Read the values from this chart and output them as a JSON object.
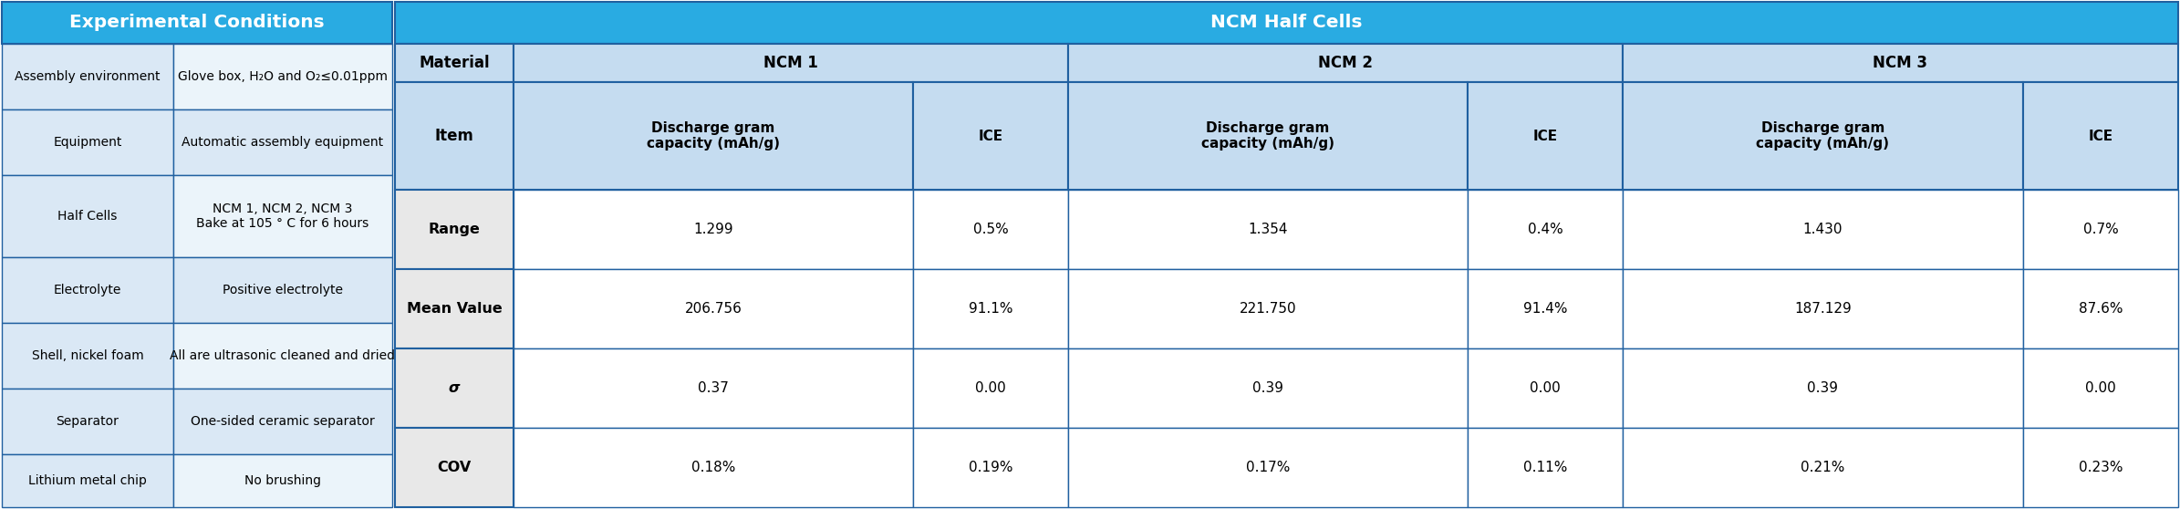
{
  "left_table": {
    "title": "Experimental Conditions",
    "title_bg": "#29ABE2",
    "title_color": "#FFFFFF",
    "rows": [
      [
        "Assembly environment",
        "Glove box, H₂O and O₂≤0.01ppm"
      ],
      [
        "Equipment",
        "Automatic assembly equipment"
      ],
      [
        "Half Cells",
        "NCM 1, NCM 2, NCM 3\nBake at 105 ° C for 6 hours"
      ],
      [
        "Electrolyte",
        "Positive electrolyte"
      ],
      [
        "Shell, nickel foam",
        "All are ultrasonic cleaned and dried"
      ],
      [
        "Separator",
        "One-sided ceramic separator"
      ],
      [
        "Lithium metal chip",
        "No brushing"
      ]
    ],
    "row_colors_col1": [
      "#DAE8F5",
      "#DAE8F5",
      "#DAE8F5",
      "#DAE8F5",
      "#DAE8F5",
      "#DAE8F5",
      "#DAE8F5"
    ],
    "row_colors_col2": [
      "#EBF4FA",
      "#DAE8F5",
      "#C5DCF0",
      "#EBF4FA",
      "#DAE8F5",
      "#EBF4FA",
      "#DAE8F5"
    ]
  },
  "right_table": {
    "main_title": "NCM Half Cells",
    "main_title_bg": "#29ABE2",
    "main_title_color": "#FFFFFF",
    "header_bg": "#C5DCF0",
    "col_groups": [
      "NCM 1",
      "NCM 2",
      "NCM 3"
    ],
    "sub_col_dgc": "Discharge gram\ncapacity (mAh/g)",
    "sub_col_ice": "ICE",
    "material_label": "Material",
    "item_label": "Item",
    "row_labels": [
      "Range",
      "Mean Value",
      "σ",
      "COV"
    ],
    "data": [
      [
        "1.299",
        "0.5%",
        "1.354",
        "0.4%",
        "1.430",
        "0.7%"
      ],
      [
        "206.756",
        "91.1%",
        "221.750",
        "91.4%",
        "187.129",
        "87.6%"
      ],
      [
        "0.37",
        "0.00",
        "0.39",
        "0.00",
        "0.39",
        "0.00"
      ],
      [
        "0.18%",
        "0.19%",
        "0.17%",
        "0.11%",
        "0.21%",
        "0.23%"
      ]
    ],
    "data_row_colors": [
      "#F0F0F0",
      "#F0F0F0",
      "#F0F0F0",
      "#F0F0F0"
    ],
    "item_bg": "#D8D8D8"
  },
  "border_color": "#2060A0",
  "text_color": "#000000",
  "bg_color": "#FFFFFF"
}
